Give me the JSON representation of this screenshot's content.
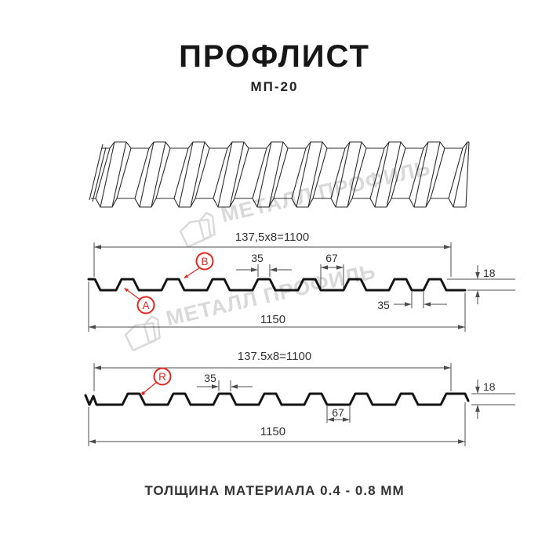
{
  "header": {
    "title": "ПРОФЛИСТ",
    "subtitle": "МП-20"
  },
  "footer": {
    "text": "ТОЛЩИНА МАТЕРИАЛА 0.4 - 0.8 ММ"
  },
  "watermark": {
    "text": "МЕТАЛЛ ПРОФИЛЬ"
  },
  "colors": {
    "profile_line": "#141414",
    "dimension": "#4d4d4d",
    "annotation_red": "#e8251d",
    "watermark_gray": "#d9d9d9"
  },
  "profile_a": {
    "label_top": "137,5x8=1100",
    "dim_rib_top": "35",
    "dim_gap": "67",
    "dim_groove": "35",
    "dim_height": "18",
    "label_total": "1150",
    "marker_a": "A",
    "marker_b": "B"
  },
  "profile_r": {
    "label_top": "137.5x8=1100",
    "dim_rib_top": "35",
    "dim_gap": "67",
    "dim_height": "18",
    "label_total": "1150",
    "marker_r": "R"
  }
}
